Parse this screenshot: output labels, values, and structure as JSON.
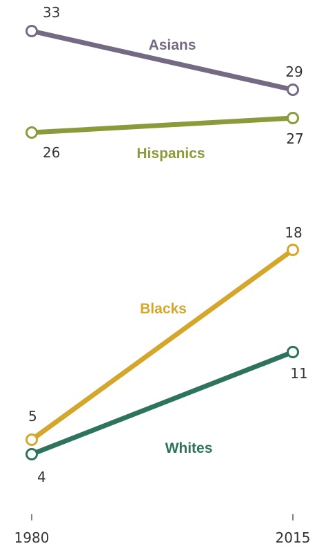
{
  "chart_data": {
    "type": "line",
    "title": "",
    "xlabel": "",
    "ylabel": "",
    "x": [
      "1980",
      "2015"
    ],
    "ylim": [
      0,
      35
    ],
    "grid": false,
    "legend": "none",
    "series": [
      {
        "name": "Asians",
        "values": [
          33,
          29
        ],
        "color": "#756a84"
      },
      {
        "name": "Hispanics",
        "values": [
          26,
          27
        ],
        "color": "#8c9a3c"
      },
      {
        "name": "Blacks",
        "values": [
          5,
          18
        ],
        "color": "#d4a72c"
      },
      {
        "name": "Whites",
        "values": [
          4,
          11
        ],
        "color": "#2e735e"
      }
    ]
  }
}
